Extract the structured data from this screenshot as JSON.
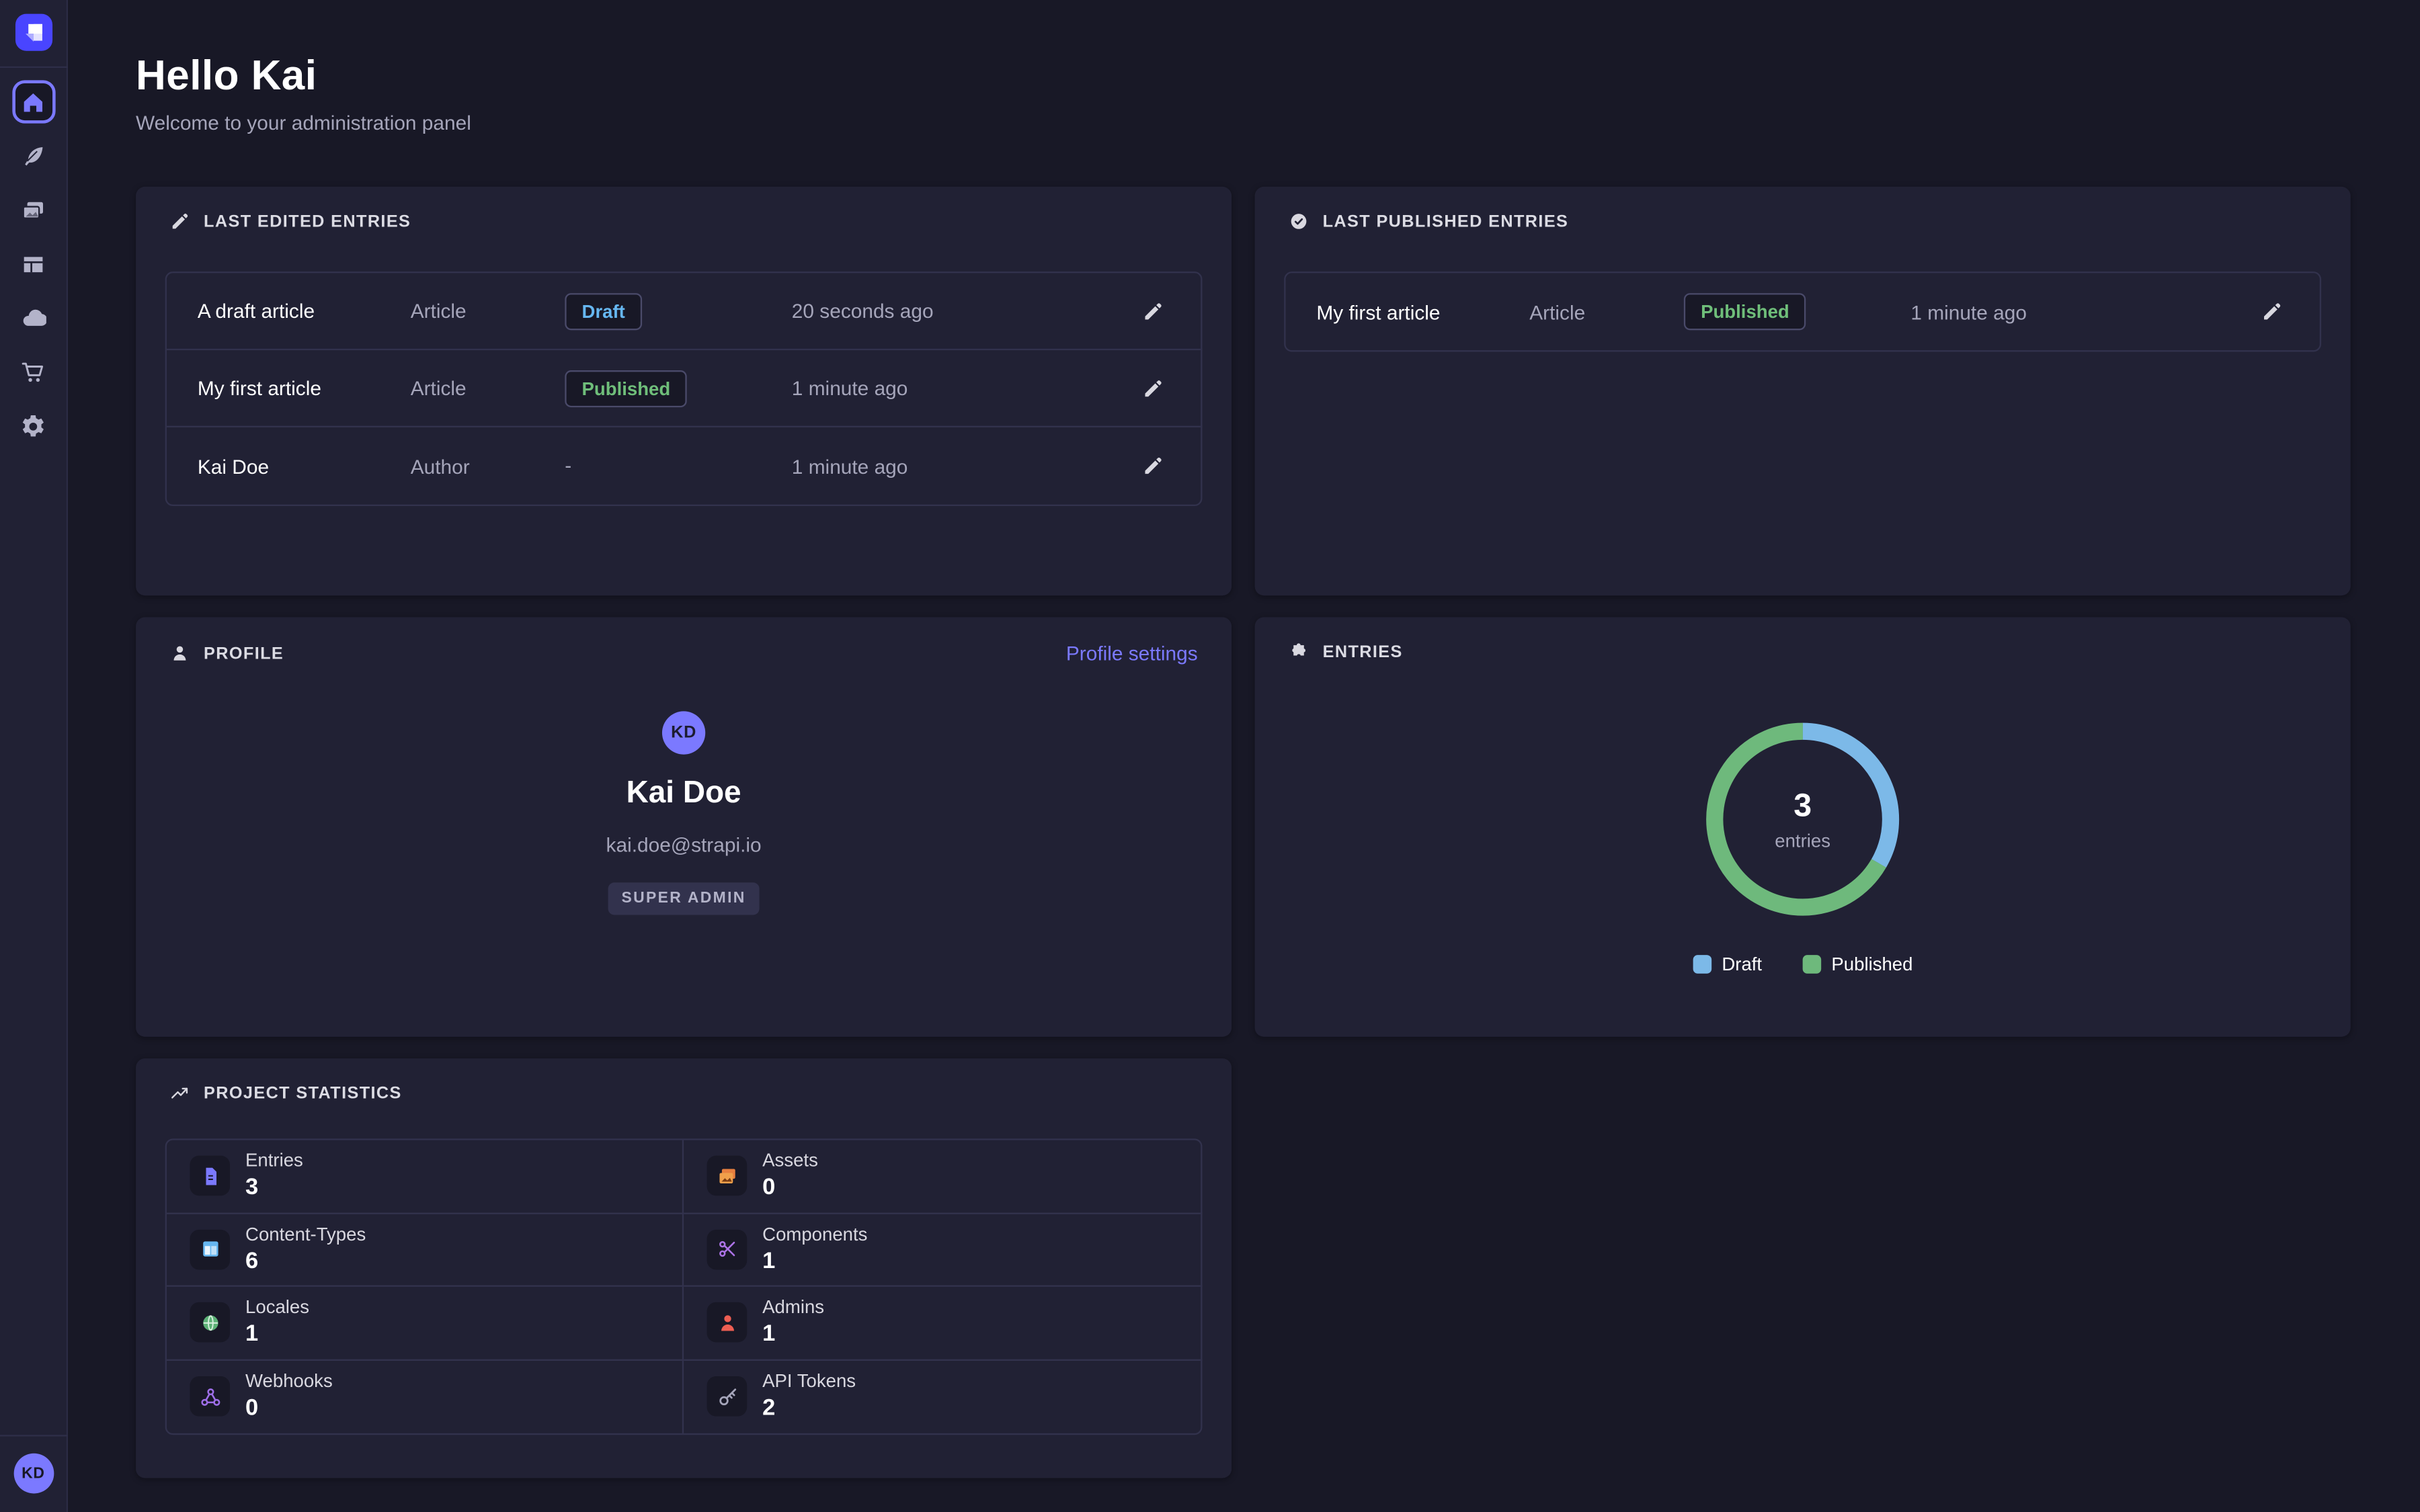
{
  "header": {
    "title": "Hello Kai",
    "subtitle": "Welcome to your administration panel"
  },
  "sidebar": {
    "icons": [
      "strapi-logo",
      "home",
      "content-manager-feather",
      "media-library-images",
      "content-type-builder-layout",
      "cloud",
      "marketplace-cart",
      "settings-gear"
    ],
    "user_initials": "KD"
  },
  "cards": {
    "last_edited": {
      "title": "LAST EDITED ENTRIES",
      "rows": [
        {
          "name": "A draft article",
          "kind": "Article",
          "status": "Draft",
          "time": "20 seconds ago"
        },
        {
          "name": "My first article",
          "kind": "Article",
          "status": "Published",
          "time": "1 minute ago"
        },
        {
          "name": "Kai Doe",
          "kind": "Author",
          "status": "-",
          "time": "1 minute ago"
        }
      ]
    },
    "last_published": {
      "title": "LAST PUBLISHED ENTRIES",
      "rows": [
        {
          "name": "My first article",
          "kind": "Article",
          "status": "Published",
          "time": "1 minute ago"
        }
      ]
    },
    "profile": {
      "title": "PROFILE",
      "settings_link": "Profile settings",
      "initials": "KD",
      "name": "Kai Doe",
      "email": "kai.doe@strapi.io",
      "role": "SUPER ADMIN"
    },
    "entries": {
      "title": "ENTRIES"
    },
    "stats": {
      "title": "PROJECT STATISTICS",
      "items": [
        {
          "label": "Entries",
          "value": "3",
          "icon": "document-icon",
          "color": "#7b79ff"
        },
        {
          "label": "Assets",
          "value": "0",
          "icon": "images-icon",
          "color": "#e8803f"
        },
        {
          "label": "Content-Types",
          "value": "6",
          "icon": "layout-icon",
          "color": "#66b7f1"
        },
        {
          "label": "Components",
          "value": "1",
          "icon": "scissors-icon",
          "color": "#ac73e6"
        },
        {
          "label": "Locales",
          "value": "1",
          "icon": "globe-icon",
          "color": "#5cb176"
        },
        {
          "label": "Admins",
          "value": "1",
          "icon": "user-icon",
          "color": "#ee5e52"
        },
        {
          "label": "Webhooks",
          "value": "0",
          "icon": "webhook-icon",
          "color": "#9736e8"
        },
        {
          "label": "API Tokens",
          "value": "2",
          "icon": "key-icon",
          "color": "#a5a5ba"
        }
      ]
    }
  },
  "chart_data": {
    "type": "pie",
    "title": "ENTRIES",
    "center_value": "3",
    "center_label": "entries",
    "slices": [
      {
        "label": "Draft",
        "value": 1,
        "color": "#7cb9e8"
      },
      {
        "label": "Published",
        "value": 2,
        "color": "#6eb97c"
      }
    ],
    "legend_position": "bottom"
  },
  "colors": {
    "page_bg": "#181826",
    "card_bg": "#212134",
    "accent": "#7b79ff",
    "logo": "#4945ff",
    "draft": "#66b7f1",
    "published": "#6fbe7a"
  }
}
